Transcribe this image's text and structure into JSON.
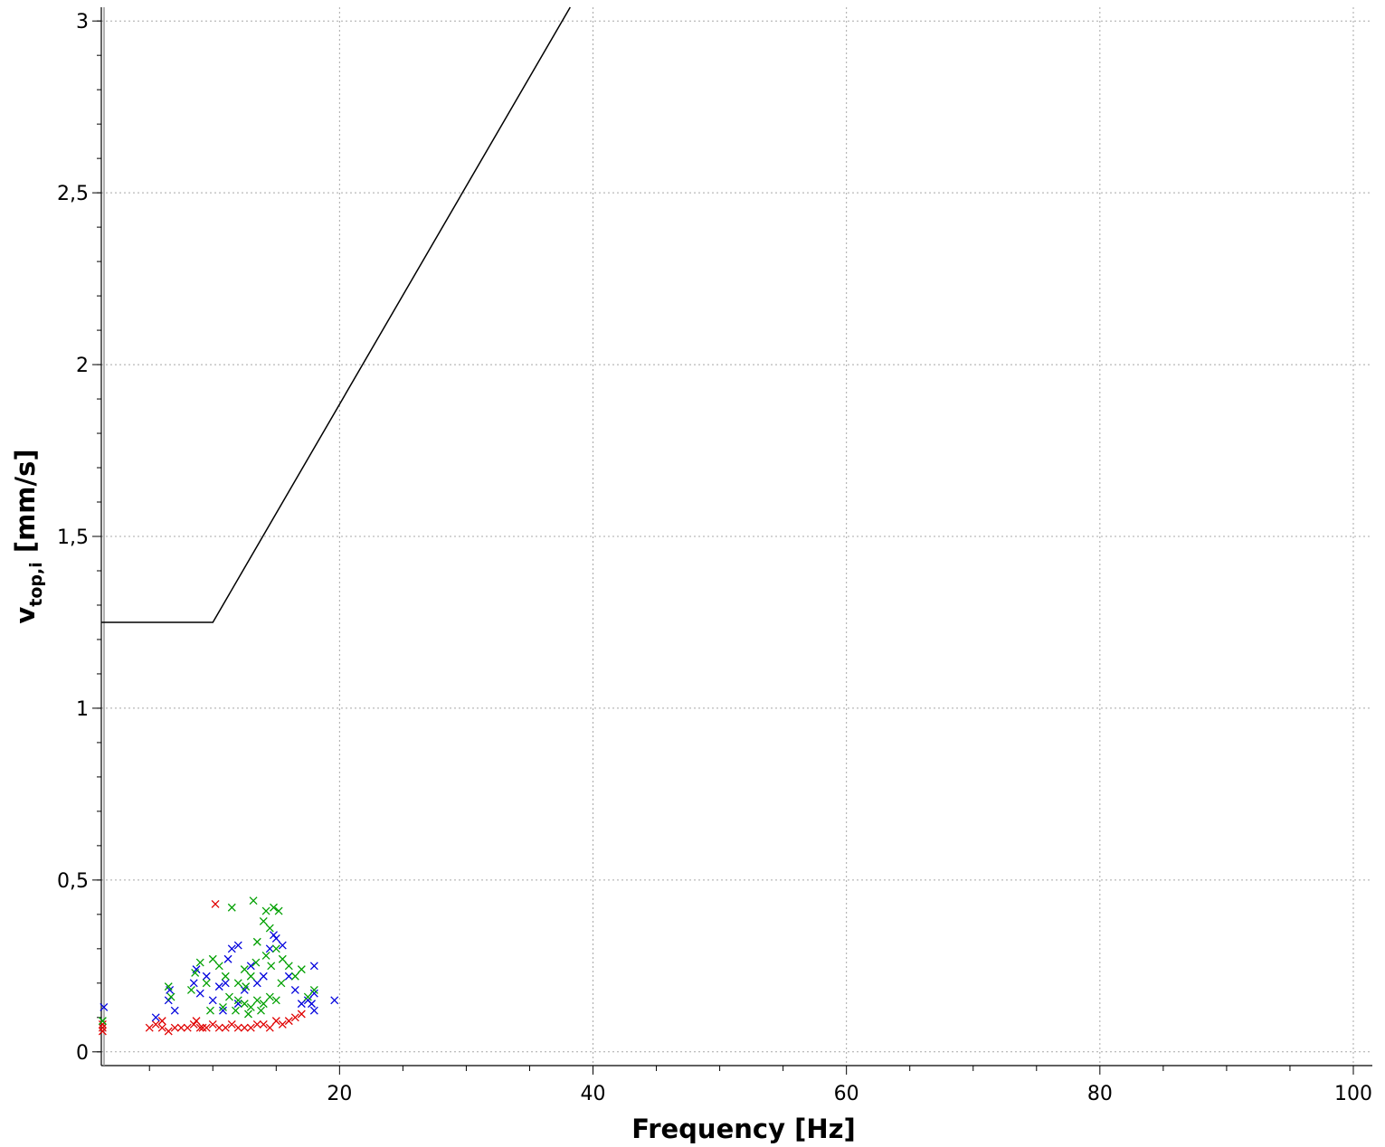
{
  "chart_data": {
    "type": "scatter",
    "xlabel": "Frequency [Hz]",
    "ylabel": "v",
    "ylabel_subscript": "top,i",
    "ylabel_unit": " [mm/s]",
    "xlim": [
      1.2,
      101.5
    ],
    "ylim": [
      -0.04,
      3.04
    ],
    "x_ticks": [
      20,
      40,
      60,
      80,
      100
    ],
    "x_tick_labels": [
      "20",
      "40",
      "60",
      "80",
      "100"
    ],
    "x_minor_ticks": [
      5,
      10,
      15,
      25,
      30,
      35,
      45,
      50,
      55,
      65,
      70,
      75,
      85,
      90,
      95
    ],
    "y_ticks": [
      0,
      0.5,
      1,
      1.5,
      2,
      2.5,
      3
    ],
    "y_tick_labels": [
      "0",
      "0,5",
      "1",
      "1,5",
      "2",
      "2,5",
      "3"
    ],
    "grid": true,
    "limit_line": {
      "color": "#000000",
      "points": [
        [
          1.2,
          1.25
        ],
        [
          10,
          1.25
        ],
        [
          38.2,
          3.04
        ]
      ]
    },
    "series": [
      {
        "color": "#e00000",
        "points": [
          [
            1.3,
            0.06
          ],
          [
            1.3,
            0.07
          ],
          [
            1.3,
            0.08
          ],
          [
            5,
            0.07
          ],
          [
            5.5,
            0.08
          ],
          [
            6,
            0.07
          ],
          [
            6,
            0.09
          ],
          [
            6.5,
            0.06
          ],
          [
            7,
            0.07
          ],
          [
            7.5,
            0.07
          ],
          [
            8,
            0.07
          ],
          [
            8.5,
            0.08
          ],
          [
            9,
            0.07
          ],
          [
            9.5,
            0.07
          ],
          [
            10,
            0.08
          ],
          [
            10.5,
            0.07
          ],
          [
            11,
            0.07
          ],
          [
            11.5,
            0.08
          ],
          [
            12,
            0.07
          ],
          [
            12.5,
            0.07
          ],
          [
            13,
            0.07
          ],
          [
            13.5,
            0.08
          ],
          [
            14,
            0.08
          ],
          [
            14.5,
            0.07
          ],
          [
            15,
            0.09
          ],
          [
            15.5,
            0.08
          ],
          [
            16,
            0.09
          ],
          [
            16.5,
            0.1
          ],
          [
            17,
            0.11
          ],
          [
            8.7,
            0.09
          ],
          [
            9.2,
            0.07
          ],
          [
            10.2,
            0.43
          ]
        ]
      },
      {
        "color": "#0000dd",
        "points": [
          [
            1.4,
            0.13
          ],
          [
            5.5,
            0.1
          ],
          [
            6.5,
            0.15
          ],
          [
            6.6,
            0.18
          ],
          [
            7,
            0.12
          ],
          [
            8.5,
            0.2
          ],
          [
            8.7,
            0.24
          ],
          [
            9,
            0.17
          ],
          [
            9.5,
            0.22
          ],
          [
            10,
            0.15
          ],
          [
            10.5,
            0.19
          ],
          [
            11,
            0.2
          ],
          [
            11.2,
            0.27
          ],
          [
            11.5,
            0.3
          ],
          [
            12,
            0.31
          ],
          [
            12.5,
            0.18
          ],
          [
            13,
            0.25
          ],
          [
            13.5,
            0.2
          ],
          [
            14,
            0.22
          ],
          [
            14.5,
            0.3
          ],
          [
            15,
            0.33
          ],
          [
            15.5,
            0.31
          ],
          [
            16,
            0.22
          ],
          [
            16.5,
            0.18
          ],
          [
            17,
            0.14
          ],
          [
            17.5,
            0.15
          ],
          [
            17.8,
            0.14
          ],
          [
            18,
            0.25
          ],
          [
            18,
            0.17
          ],
          [
            18,
            0.12
          ],
          [
            19.6,
            0.15
          ],
          [
            14.8,
            0.34
          ],
          [
            12,
            0.14
          ],
          [
            10.8,
            0.12
          ]
        ]
      },
      {
        "color": "#00a000",
        "points": [
          [
            1.3,
            0.09
          ],
          [
            6.5,
            0.19
          ],
          [
            6.7,
            0.16
          ],
          [
            8.3,
            0.18
          ],
          [
            8.6,
            0.23
          ],
          [
            9,
            0.26
          ],
          [
            9.5,
            0.2
          ],
          [
            10,
            0.27
          ],
          [
            10.5,
            0.25
          ],
          [
            11,
            0.22
          ],
          [
            11.5,
            0.42
          ],
          [
            12,
            0.2
          ],
          [
            12.5,
            0.24
          ],
          [
            13,
            0.22
          ],
          [
            13.2,
            0.44
          ],
          [
            13.5,
            0.32
          ],
          [
            14,
            0.38
          ],
          [
            14.2,
            0.41
          ],
          [
            14.5,
            0.36
          ],
          [
            14.8,
            0.42
          ],
          [
            15,
            0.3
          ],
          [
            15.2,
            0.41
          ],
          [
            15.5,
            0.27
          ],
          [
            16,
            0.25
          ],
          [
            16.5,
            0.22
          ],
          [
            17,
            0.24
          ],
          [
            17.5,
            0.16
          ],
          [
            18,
            0.18
          ],
          [
            12,
            0.15
          ],
          [
            12.5,
            0.14
          ],
          [
            13,
            0.13
          ],
          [
            13.5,
            0.15
          ],
          [
            14,
            0.14
          ],
          [
            14.5,
            0.16
          ],
          [
            15,
            0.15
          ],
          [
            13.8,
            0.12
          ],
          [
            12.8,
            0.11
          ],
          [
            11.8,
            0.12
          ],
          [
            10.8,
            0.13
          ],
          [
            9.8,
            0.12
          ],
          [
            11.3,
            0.16
          ],
          [
            14.6,
            0.25
          ],
          [
            14.2,
            0.28
          ],
          [
            13.4,
            0.26
          ],
          [
            12.6,
            0.19
          ],
          [
            15.4,
            0.2
          ]
        ]
      }
    ]
  }
}
